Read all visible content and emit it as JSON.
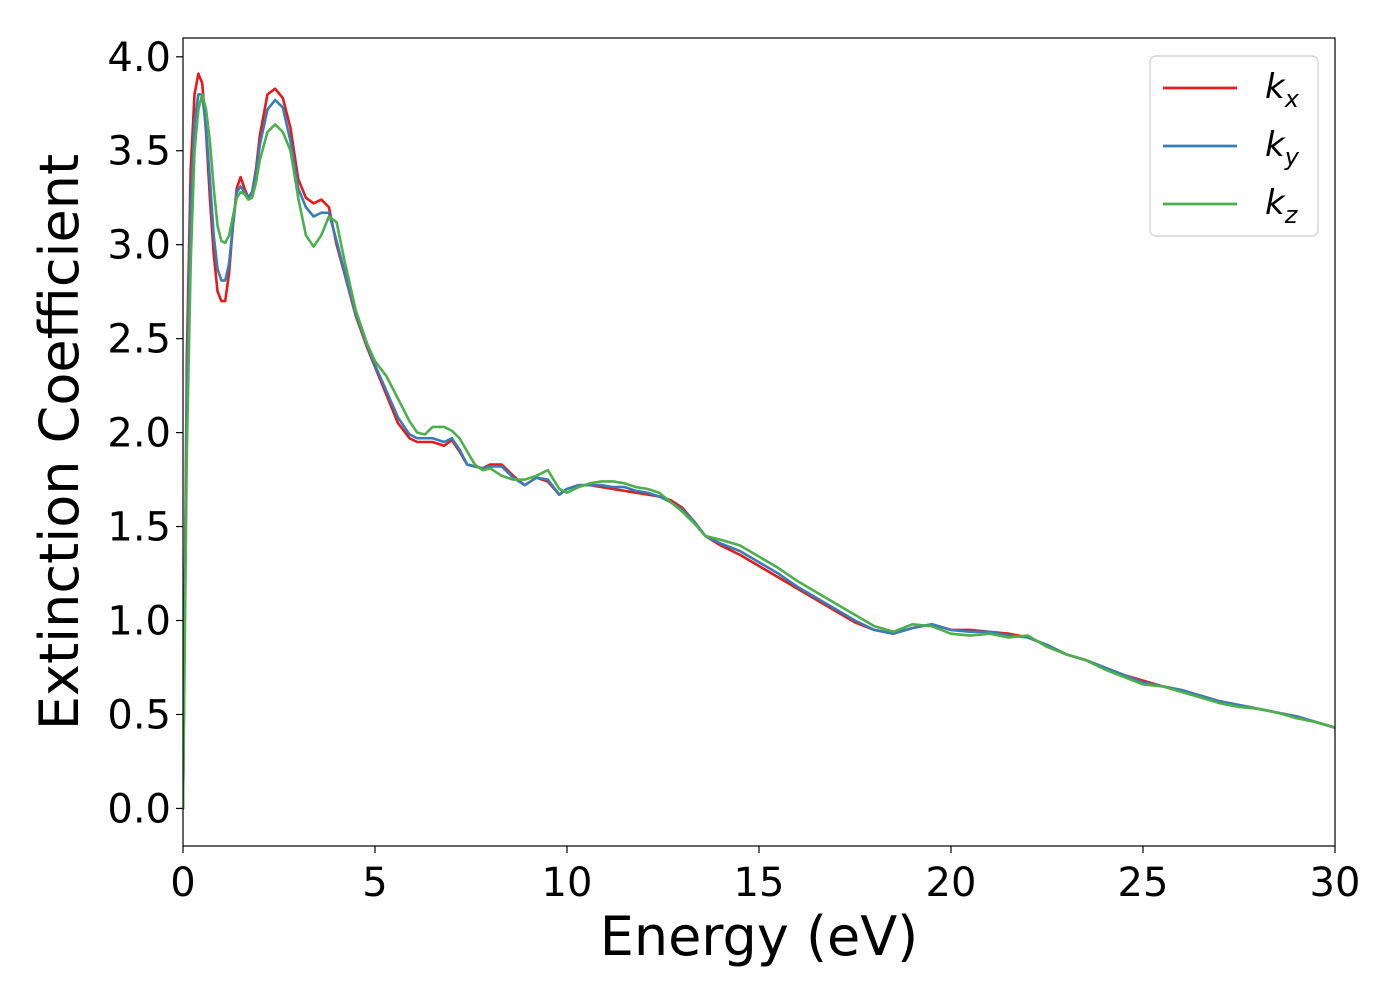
{
  "chart_data": {
    "type": "line",
    "title": "",
    "xlabel": "Energy (eV)",
    "ylabel": "Extinction Coefficient",
    "xlim": [
      0,
      30
    ],
    "ylim": [
      -0.2,
      4.1
    ],
    "xticks": [
      0,
      5,
      10,
      15,
      20,
      25,
      30
    ],
    "xtick_labels": [
      "0",
      "5",
      "10",
      "15",
      "20",
      "25",
      "30"
    ],
    "yticks": [
      0.0,
      0.5,
      1.0,
      1.5,
      2.0,
      2.5,
      3.0,
      3.5,
      4.0
    ],
    "ytick_labels": [
      "0.0",
      "0.5",
      "1.0",
      "1.5",
      "2.0",
      "2.5",
      "3.0",
      "3.5",
      "4.0"
    ],
    "grid": false,
    "legend_position": "top-right",
    "series": [
      {
        "name": "k_x",
        "label_base": "k",
        "label_sub": "x",
        "color": "#e41a1c",
        "x": [
          0,
          0.1,
          0.2,
          0.3,
          0.4,
          0.5,
          0.6,
          0.7,
          0.8,
          0.9,
          1.0,
          1.1,
          1.2,
          1.3,
          1.4,
          1.5,
          1.6,
          1.7,
          1.8,
          1.9,
          2.0,
          2.2,
          2.4,
          2.6,
          2.8,
          3.0,
          3.2,
          3.4,
          3.6,
          3.8,
          4.0,
          4.2,
          4.5,
          4.8,
          5.0,
          5.3,
          5.6,
          5.9,
          6.1,
          6.3,
          6.5,
          6.8,
          7.0,
          7.2,
          7.4,
          7.6,
          7.8,
          8.0,
          8.3,
          8.6,
          8.9,
          9.2,
          9.5,
          9.8,
          10.0,
          10.3,
          10.6,
          10.9,
          11.2,
          11.5,
          11.8,
          12.1,
          12.4,
          12.7,
          13.0,
          13.3,
          13.6,
          14.0,
          14.5,
          15.0,
          15.5,
          16.0,
          16.5,
          17.0,
          17.5,
          18.0,
          18.5,
          19.0,
          19.5,
          20.0,
          20.5,
          21.0,
          21.5,
          22.0,
          22.5,
          23.0,
          23.5,
          24.0,
          24.5,
          25.0,
          25.5,
          26.0,
          26.5,
          27.0,
          27.5,
          28.0,
          28.5,
          29.0,
          29.5,
          30.0
        ],
        "y": [
          0.0,
          2.4,
          3.4,
          3.8,
          3.91,
          3.86,
          3.6,
          3.25,
          2.95,
          2.75,
          2.7,
          2.7,
          2.85,
          3.1,
          3.3,
          3.36,
          3.3,
          3.25,
          3.28,
          3.4,
          3.58,
          3.8,
          3.83,
          3.78,
          3.62,
          3.35,
          3.25,
          3.22,
          3.24,
          3.2,
          3.0,
          2.85,
          2.62,
          2.45,
          2.35,
          2.2,
          2.05,
          1.97,
          1.95,
          1.95,
          1.95,
          1.93,
          1.96,
          1.9,
          1.83,
          1.82,
          1.81,
          1.83,
          1.83,
          1.77,
          1.72,
          1.76,
          1.74,
          1.67,
          1.7,
          1.72,
          1.72,
          1.71,
          1.7,
          1.69,
          1.68,
          1.67,
          1.66,
          1.64,
          1.6,
          1.53,
          1.45,
          1.4,
          1.35,
          1.29,
          1.23,
          1.17,
          1.11,
          1.05,
          0.99,
          0.95,
          0.93,
          0.96,
          0.98,
          0.95,
          0.95,
          0.94,
          0.93,
          0.91,
          0.87,
          0.82,
          0.79,
          0.75,
          0.71,
          0.68,
          0.65,
          0.63,
          0.6,
          0.57,
          0.55,
          0.53,
          0.51,
          0.49,
          0.46,
          0.43
        ]
      },
      {
        "name": "k_y",
        "label_base": "k",
        "label_sub": "y",
        "color": "#377eb8",
        "x": [
          0,
          0.1,
          0.2,
          0.3,
          0.4,
          0.5,
          0.6,
          0.7,
          0.8,
          0.9,
          1.0,
          1.1,
          1.2,
          1.3,
          1.4,
          1.5,
          1.6,
          1.7,
          1.8,
          1.9,
          2.0,
          2.2,
          2.4,
          2.6,
          2.8,
          3.0,
          3.2,
          3.4,
          3.6,
          3.8,
          4.0,
          4.2,
          4.5,
          4.8,
          5.0,
          5.3,
          5.6,
          5.9,
          6.1,
          6.3,
          6.5,
          6.8,
          7.0,
          7.2,
          7.4,
          7.6,
          7.8,
          8.0,
          8.3,
          8.6,
          8.9,
          9.2,
          9.5,
          9.8,
          10.0,
          10.3,
          10.6,
          10.9,
          11.2,
          11.5,
          11.8,
          12.1,
          12.4,
          12.7,
          13.0,
          13.3,
          13.6,
          14.0,
          14.5,
          15.0,
          15.5,
          16.0,
          16.5,
          17.0,
          17.5,
          18.0,
          18.5,
          19.0,
          19.5,
          20.0,
          20.5,
          21.0,
          21.5,
          22.0,
          22.5,
          23.0,
          23.5,
          24.0,
          24.5,
          25.0,
          25.5,
          26.0,
          26.5,
          27.0,
          27.5,
          28.0,
          28.5,
          29.0,
          29.5,
          30.0
        ],
        "y": [
          0.0,
          2.2,
          3.2,
          3.65,
          3.8,
          3.8,
          3.62,
          3.35,
          3.05,
          2.87,
          2.81,
          2.81,
          2.9,
          3.1,
          3.28,
          3.31,
          3.28,
          3.25,
          3.28,
          3.38,
          3.53,
          3.72,
          3.77,
          3.73,
          3.55,
          3.3,
          3.2,
          3.15,
          3.17,
          3.17,
          3.02,
          2.86,
          2.63,
          2.46,
          2.36,
          2.22,
          2.08,
          1.99,
          1.97,
          1.97,
          1.97,
          1.95,
          1.97,
          1.91,
          1.83,
          1.82,
          1.81,
          1.82,
          1.82,
          1.76,
          1.72,
          1.76,
          1.75,
          1.67,
          1.7,
          1.72,
          1.72,
          1.72,
          1.71,
          1.71,
          1.69,
          1.68,
          1.66,
          1.63,
          1.59,
          1.53,
          1.45,
          1.41,
          1.37,
          1.31,
          1.25,
          1.18,
          1.12,
          1.06,
          1.0,
          0.95,
          0.93,
          0.96,
          0.98,
          0.95,
          0.94,
          0.94,
          0.92,
          0.91,
          0.87,
          0.82,
          0.79,
          0.75,
          0.71,
          0.67,
          0.65,
          0.63,
          0.6,
          0.57,
          0.55,
          0.53,
          0.51,
          0.49,
          0.46,
          0.43
        ]
      },
      {
        "name": "k_z",
        "label_base": "k",
        "label_sub": "z",
        "color": "#4daf4a",
        "x": [
          0,
          0.1,
          0.2,
          0.3,
          0.4,
          0.5,
          0.6,
          0.7,
          0.8,
          0.9,
          1.0,
          1.1,
          1.2,
          1.3,
          1.4,
          1.5,
          1.6,
          1.7,
          1.8,
          1.9,
          2.0,
          2.2,
          2.4,
          2.6,
          2.8,
          3.0,
          3.2,
          3.4,
          3.6,
          3.8,
          4.0,
          4.2,
          4.5,
          4.8,
          5.0,
          5.3,
          5.6,
          5.9,
          6.1,
          6.3,
          6.5,
          6.8,
          7.0,
          7.2,
          7.4,
          7.6,
          7.8,
          8.0,
          8.3,
          8.6,
          8.9,
          9.2,
          9.5,
          9.8,
          10.0,
          10.3,
          10.6,
          10.9,
          11.2,
          11.5,
          11.8,
          12.1,
          12.4,
          12.7,
          13.0,
          13.3,
          13.6,
          14.0,
          14.5,
          15.0,
          15.5,
          16.0,
          16.5,
          17.0,
          17.5,
          18.0,
          18.5,
          19.0,
          19.5,
          20.0,
          20.5,
          21.0,
          21.5,
          22.0,
          22.5,
          23.0,
          23.5,
          24.0,
          24.5,
          25.0,
          25.5,
          26.0,
          26.5,
          27.0,
          27.5,
          28.0,
          28.5,
          29.0,
          29.5,
          30.0
        ],
        "y": [
          0.0,
          1.9,
          2.9,
          3.5,
          3.72,
          3.8,
          3.72,
          3.55,
          3.3,
          3.1,
          3.02,
          3.01,
          3.05,
          3.15,
          3.25,
          3.28,
          3.27,
          3.24,
          3.25,
          3.33,
          3.45,
          3.6,
          3.64,
          3.6,
          3.5,
          3.25,
          3.05,
          2.99,
          3.05,
          3.15,
          3.12,
          2.92,
          2.65,
          2.47,
          2.38,
          2.3,
          2.18,
          2.06,
          2.0,
          1.99,
          2.03,
          2.03,
          2.01,
          1.97,
          1.9,
          1.83,
          1.8,
          1.81,
          1.77,
          1.75,
          1.75,
          1.77,
          1.8,
          1.7,
          1.68,
          1.71,
          1.73,
          1.74,
          1.74,
          1.73,
          1.71,
          1.7,
          1.68,
          1.63,
          1.58,
          1.52,
          1.45,
          1.43,
          1.4,
          1.34,
          1.28,
          1.21,
          1.15,
          1.09,
          1.03,
          0.97,
          0.94,
          0.98,
          0.97,
          0.93,
          0.92,
          0.93,
          0.91,
          0.92,
          0.86,
          0.82,
          0.79,
          0.74,
          0.7,
          0.66,
          0.65,
          0.62,
          0.59,
          0.56,
          0.54,
          0.53,
          0.51,
          0.48,
          0.46,
          0.43
        ]
      }
    ]
  }
}
